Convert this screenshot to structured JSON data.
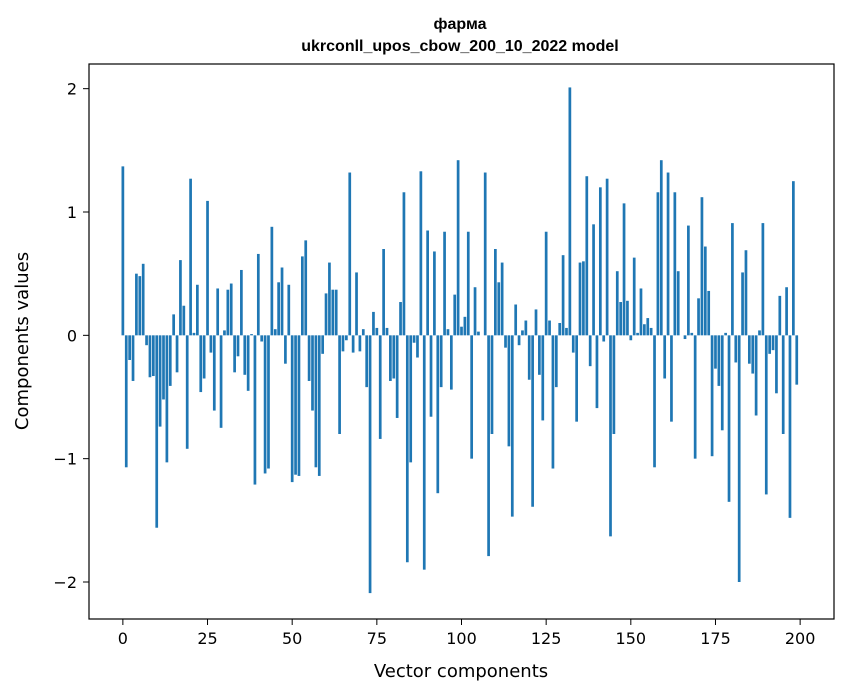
{
  "chart_data": {
    "type": "bar",
    "title": "фарма",
    "subtitle": "ukrconll_upos_cbow_200_10_2022 model",
    "xlabel": "Vector components",
    "ylabel": "Components values",
    "xlim": [
      -10,
      210
    ],
    "ylim": [
      -2.3,
      2.2
    ],
    "xticks": [
      0,
      25,
      50,
      75,
      100,
      125,
      150,
      175,
      200
    ],
    "yticks": [
      -2,
      -1,
      0,
      1,
      2
    ],
    "ytick_labels": [
      "−2",
      "−1",
      "0",
      "1",
      "2"
    ],
    "bar_color": "#1f77b4",
    "x": [
      0,
      1,
      2,
      3,
      4,
      5,
      6,
      7,
      8,
      9,
      10,
      11,
      12,
      13,
      14,
      15,
      16,
      17,
      18,
      19,
      20,
      21,
      22,
      23,
      24,
      25,
      26,
      27,
      28,
      29,
      30,
      31,
      32,
      33,
      34,
      35,
      36,
      37,
      38,
      39,
      40,
      41,
      42,
      43,
      44,
      45,
      46,
      47,
      48,
      49,
      50,
      51,
      52,
      53,
      54,
      55,
      56,
      57,
      58,
      59,
      60,
      61,
      62,
      63,
      64,
      65,
      66,
      67,
      68,
      69,
      70,
      71,
      72,
      73,
      74,
      75,
      76,
      77,
      78,
      79,
      80,
      81,
      82,
      83,
      84,
      85,
      86,
      87,
      88,
      89,
      90,
      91,
      92,
      93,
      94,
      95,
      96,
      97,
      98,
      99,
      100,
      101,
      102,
      103,
      104,
      105,
      106,
      107,
      108,
      109,
      110,
      111,
      112,
      113,
      114,
      115,
      116,
      117,
      118,
      119,
      120,
      121,
      122,
      123,
      124,
      125,
      126,
      127,
      128,
      129,
      130,
      131,
      132,
      133,
      134,
      135,
      136,
      137,
      138,
      139,
      140,
      141,
      142,
      143,
      144,
      145,
      146,
      147,
      148,
      149,
      150,
      151,
      152,
      153,
      154,
      155,
      156,
      157,
      158,
      159,
      160,
      161,
      162,
      163,
      164,
      165,
      166,
      167,
      168,
      169,
      170,
      171,
      172,
      173,
      174,
      175,
      176,
      177,
      178,
      179,
      180,
      181,
      182,
      183,
      184,
      185,
      186,
      187,
      188,
      189,
      190,
      191,
      192,
      193,
      194,
      195,
      196,
      197,
      198,
      199
    ],
    "values": [
      1.37,
      -1.07,
      -0.2,
      -0.37,
      0.5,
      0.48,
      0.58,
      -0.08,
      -0.34,
      -0.33,
      -1.56,
      -0.74,
      -0.52,
      -1.03,
      -0.41,
      0.17,
      -0.3,
      0.61,
      0.24,
      -0.92,
      1.27,
      0.02,
      0.41,
      -0.46,
      -0.35,
      1.09,
      -0.14,
      -0.61,
      0.38,
      -0.75,
      0.04,
      0.37,
      0.42,
      -0.3,
      -0.17,
      0.53,
      -0.32,
      -0.45,
      0.01,
      -1.21,
      0.66,
      -0.05,
      -1.12,
      -1.08,
      0.88,
      0.05,
      0.43,
      0.55,
      -0.23,
      0.41,
      -1.19,
      -1.13,
      -1.14,
      0.64,
      0.77,
      -0.37,
      -0.61,
      -1.07,
      -1.14,
      -0.15,
      0.34,
      0.59,
      0.37,
      0.37,
      -0.8,
      -0.13,
      -0.04,
      1.32,
      -0.14,
      0.51,
      -0.13,
      0.05,
      -0.42,
      -2.09,
      0.19,
      0.06,
      -0.84,
      0.7,
      0.06,
      -0.37,
      -0.35,
      -0.67,
      0.27,
      1.16,
      -1.84,
      -1.03,
      -0.06,
      -0.18,
      1.33,
      -1.9,
      0.85,
      -0.66,
      0.68,
      -1.28,
      -0.42,
      0.84,
      0.05,
      -0.44,
      0.33,
      1.42,
      0.07,
      0.15,
      0.84,
      -1.0,
      0.39,
      0.03,
      0.0,
      1.32,
      -1.79,
      -0.8,
      0.7,
      0.43,
      0.59,
      -0.1,
      -0.9,
      -1.47,
      0.25,
      -0.08,
      0.04,
      0.12,
      -0.36,
      -1.39,
      0.21,
      -0.32,
      -0.69,
      0.84,
      0.12,
      -1.08,
      -0.42,
      0.1,
      0.65,
      0.06,
      2.01,
      -0.14,
      -0.7,
      0.59,
      0.6,
      1.29,
      -0.25,
      0.9,
      -0.59,
      1.2,
      -0.05,
      1.27,
      -1.63,
      -0.8,
      0.52,
      0.27,
      1.07,
      0.28,
      -0.04,
      0.63,
      0.02,
      0.38,
      0.09,
      0.14,
      0.06,
      -1.07,
      1.16,
      1.42,
      -0.35,
      1.32,
      -0.7,
      1.16,
      0.52,
      0.0,
      -0.03,
      0.89,
      0.02,
      -1.0,
      0.3,
      1.12,
      0.72,
      0.36,
      -0.98,
      -0.27,
      -0.41,
      -0.77,
      0.02,
      -1.35,
      0.91,
      -0.22,
      -2.0,
      0.51,
      0.69,
      -0.23,
      -0.31,
      -0.65,
      0.04,
      0.91,
      -1.29,
      -0.15,
      -0.12,
      -0.47,
      0.32,
      -0.8,
      0.39,
      -1.48,
      1.25,
      -0.4
    ]
  }
}
